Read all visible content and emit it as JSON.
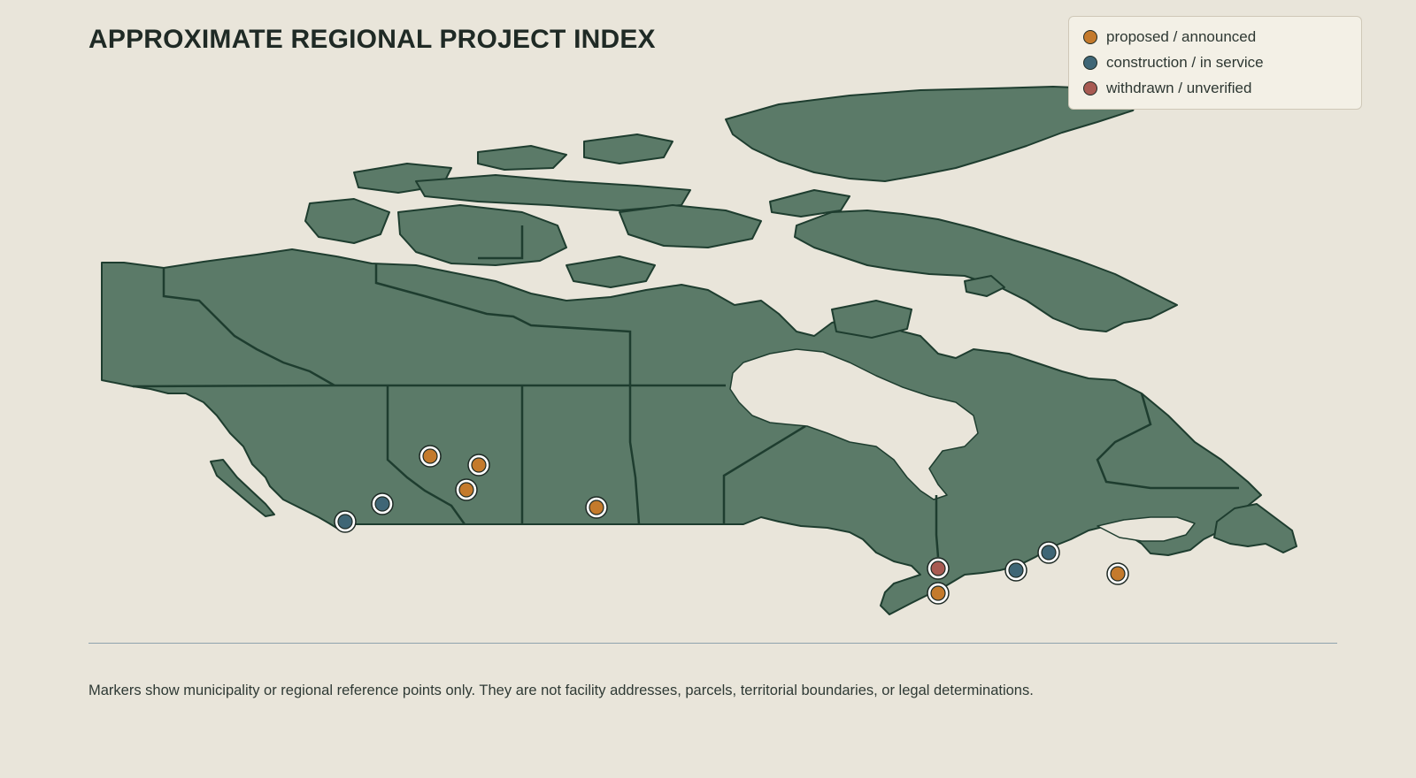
{
  "title": "APPROXIMATE REGIONAL PROJECT INDEX",
  "legend": [
    {
      "label": "proposed / announced",
      "color": "#c47a2c"
    },
    {
      "label": "construction / in service",
      "color": "#3f6676"
    },
    {
      "label": "withdrawn / unverified",
      "color": "#a85a52"
    }
  ],
  "colors": {
    "land": "#5b7a68",
    "boundary": "#1e3d2f",
    "water": "#e9e5da",
    "marker_outline": "#1e2a25",
    "marker_halo": "#ffffff"
  },
  "markers": [
    {
      "status": "proposed"
    },
    {
      "status": "proposed"
    },
    {
      "status": "proposed"
    },
    {
      "status": "construction"
    },
    {
      "status": "construction"
    },
    {
      "status": "proposed"
    },
    {
      "status": "withdrawn"
    },
    {
      "status": "proposed"
    },
    {
      "status": "construction"
    },
    {
      "status": "construction"
    },
    {
      "status": "proposed"
    }
  ],
  "footnote": "Markers show municipality or regional reference points only. They are not facility addresses, parcels, territorial boundaries, or legal determinations."
}
